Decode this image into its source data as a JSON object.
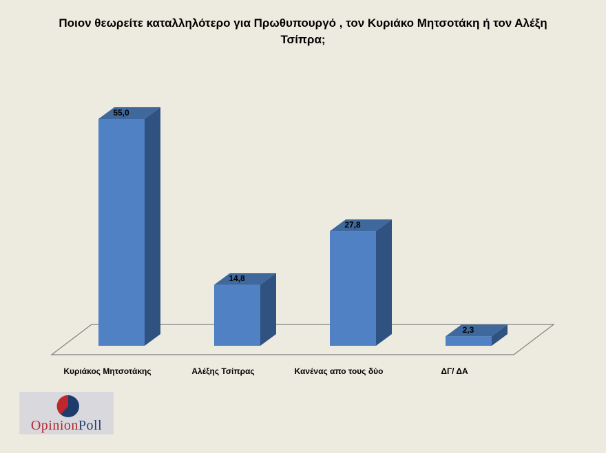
{
  "chart_data": {
    "type": "bar",
    "title_lines": [
      "Ποιον θεωρείτε καταλληλότερο για Πρωθυπουργό , τον Κυριάκο Μητσοτάκη ή τον Αλέξη",
      "Τσίπρα;"
    ],
    "categories": [
      "Κυριάκος Μητσοτάκης",
      "Αλέξης Τσίπρας",
      "Κανένας απο τους δύο",
      "ΔΓ/ ΔΑ"
    ],
    "values": [
      55.0,
      14.8,
      27.8,
      2.3
    ],
    "value_labels": [
      "55,0",
      "14,8",
      "27,8",
      "2,3"
    ],
    "ylim": [
      0,
      60
    ],
    "grid": false,
    "legend": "none",
    "colors": {
      "bar_front": "#4f81c4",
      "bar_side": "#2f5280",
      "bar_top": "#3f689c",
      "floor_line": "#7f7f7f"
    }
  },
  "logo": {
    "word1": "Opinion",
    "word2": "Poll"
  }
}
